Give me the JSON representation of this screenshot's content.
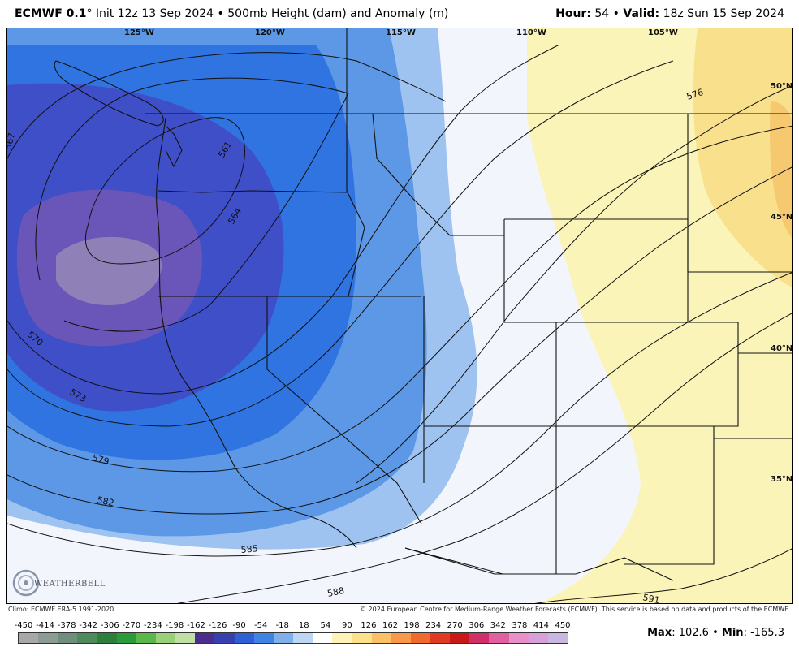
{
  "header": {
    "model": "ECMWF 0.1",
    "degree_mark": "°",
    "init_text": "Init 12z 13 Sep 2024",
    "separator": "•",
    "product": "500mb Height (dam) and Anomaly (m)",
    "hour_label": "Hour:",
    "hour_value": "54",
    "valid_label": "Valid:",
    "valid_value": "18z Sun 15 Sep 2024"
  },
  "map": {
    "longitude_labels": [
      "125°W",
      "120°W",
      "115°W",
      "110°W",
      "105°W"
    ],
    "latitude_labels": [
      "50°N",
      "45°N",
      "40°N",
      "35°N"
    ],
    "contour_labels": [
      "567",
      "561",
      "564",
      "570",
      "573",
      "579",
      "582",
      "585",
      "588",
      "576",
      "591"
    ],
    "anomaly_colors": {
      "deep_low": "#6a56b8",
      "low": "#3f4fc8",
      "moderate_low": "#2f74e0",
      "mild_low": "#5c98e6",
      "slight_low": "#9ec3f0",
      "near_zero": "#f2f6fc",
      "slight_high": "#fbf4b8",
      "mild_high": "#f8e08c",
      "moderate_high": "#f6c870"
    }
  },
  "credits": {
    "climo": "Climo: ECMWF ERA-5 1991-2020",
    "copyright": "© 2024 European Centre for Medium-Range Weather Forecasts (ECMWF). This service is based on data and products of the ECMWF."
  },
  "legend": {
    "ticks": [
      "-450",
      "-414",
      "-378",
      "-342",
      "-306",
      "-270",
      "-234",
      "-198",
      "-162",
      "-126",
      "-90",
      "-54",
      "-18",
      "18",
      "54",
      "90",
      "126",
      "162",
      "198",
      "234",
      "270",
      "306",
      "342",
      "378",
      "414",
      "450"
    ],
    "colors": [
      "#a8a8a8",
      "#8c9c94",
      "#6f8f7c",
      "#4f8a5c",
      "#2f7f3c",
      "#2a9a3a",
      "#5ab84a",
      "#9ad07a",
      "#c0e0a8",
      "#4a2d8c",
      "#3a3fb0",
      "#2f5fd4",
      "#3f84e4",
      "#7fb0ea",
      "#bcd6f4",
      "#ffffff",
      "#fff4b8",
      "#fde08a",
      "#fbc068",
      "#f89848",
      "#f06a30",
      "#e03a20",
      "#c81818",
      "#d0306a",
      "#e060a0",
      "#e890c8",
      "#d8a0d8",
      "#c8b8e0"
    ],
    "max_label": "Max",
    "max_value": "102.6",
    "min_label": "Min",
    "min_value": "-165.3"
  },
  "logo": {
    "text": "WEATHERBELL",
    "icon": "weatherbell-swirl-icon"
  }
}
